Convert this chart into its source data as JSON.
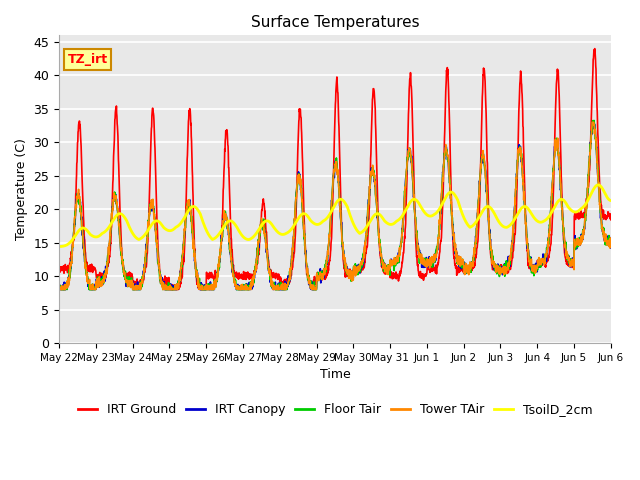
{
  "title": "Surface Temperatures",
  "xlabel": "Time",
  "ylabel": "Temperature (C)",
  "ylim": [
    0,
    46
  ],
  "yticks": [
    0,
    5,
    10,
    15,
    20,
    25,
    30,
    35,
    40,
    45
  ],
  "bg_color": "#e8e8e8",
  "fig_color": "#ffffff",
  "annotation_text": "TZ_irt",
  "annotation_bg": "#ffff99",
  "annotation_border": "#cc8800",
  "series": {
    "IRT Ground": {
      "color": "#ff0000",
      "lw": 1.2
    },
    "IRT Canopy": {
      "color": "#0000cc",
      "lw": 1.2
    },
    "Floor Tair": {
      "color": "#00cc00",
      "lw": 1.2
    },
    "Tower TAir": {
      "color": "#ff8800",
      "lw": 1.2
    },
    "TsoilD_2cm": {
      "color": "#ffff00",
      "lw": 2.0
    }
  },
  "x_tick_labels": [
    "May 22",
    "May 23",
    "May 24",
    "May 25",
    "May 26",
    "May 27",
    "May 28",
    "May 29",
    "May 30",
    "May 31",
    "Jun 1",
    "Jun 2",
    "Jun 3",
    "Jun 4",
    "Jun 5",
    "Jun 6"
  ],
  "num_days": 15,
  "points_per_day": 144,
  "irt_ground_peaks": [
    33,
    35,
    35,
    35,
    32,
    21,
    35,
    39,
    38,
    40,
    41,
    41,
    40,
    41,
    44
  ],
  "irt_ground_mins": [
    11,
    10,
    9,
    8,
    10,
    10,
    9,
    10,
    11,
    10,
    11,
    11,
    11,
    12,
    19
  ],
  "other_peaks": [
    22,
    22,
    21,
    21,
    19,
    18,
    25,
    27,
    26,
    29,
    29,
    28,
    29,
    30,
    33
  ],
  "other_mins": [
    8,
    9,
    8,
    8,
    8,
    8,
    8,
    10,
    11,
    12,
    12,
    11,
    11,
    12,
    15
  ],
  "soil_values": [
    16,
    18,
    17,
    19,
    17,
    17,
    18,
    20,
    18,
    20,
    21,
    19,
    19,
    20,
    22
  ]
}
